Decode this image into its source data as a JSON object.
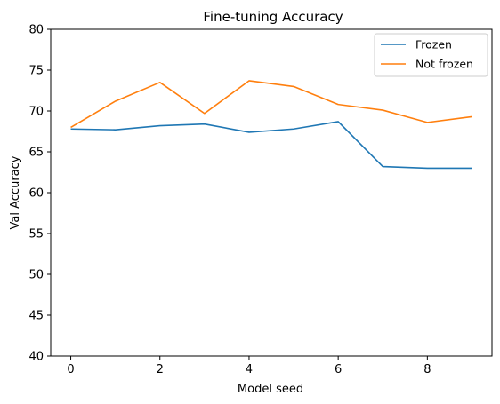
{
  "chart_data": {
    "type": "line",
    "title": "Fine-tuning Accuracy",
    "xlabel": "Model seed",
    "ylabel": "Val Accuracy",
    "x": [
      0,
      1,
      2,
      3,
      4,
      5,
      6,
      7,
      8,
      9
    ],
    "xlim": [
      -0.45,
      9.45
    ],
    "ylim": [
      40,
      80
    ],
    "xticks": [
      0,
      2,
      4,
      6,
      8
    ],
    "yticks": [
      40,
      45,
      50,
      55,
      60,
      65,
      70,
      75,
      80
    ],
    "grid": false,
    "legend_position": "top-right",
    "series": [
      {
        "name": "Frozen",
        "color": "#1f77b4",
        "values": [
          67.8,
          67.7,
          68.2,
          68.4,
          67.4,
          67.8,
          68.7,
          63.2,
          63.0,
          63.0
        ]
      },
      {
        "name": "Not frozen",
        "color": "#ff7f0e",
        "values": [
          68.0,
          71.2,
          73.5,
          69.7,
          73.7,
          73.0,
          70.8,
          70.1,
          68.6,
          69.3
        ]
      }
    ]
  }
}
